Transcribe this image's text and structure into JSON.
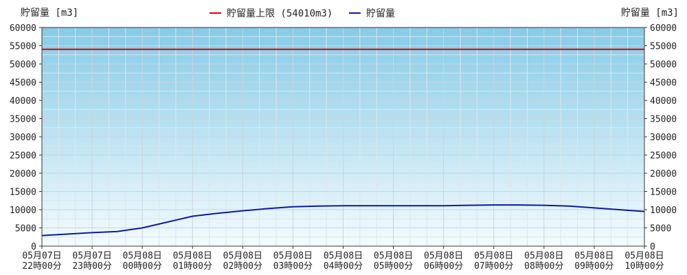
{
  "chart_data": {
    "type": "line",
    "y_unit_left": "貯留量 [m3]",
    "y_unit_right": "貯留量 [m3]",
    "ylim": [
      0,
      60000
    ],
    "yticks": [
      0,
      5000,
      10000,
      15000,
      20000,
      25000,
      30000,
      35000,
      40000,
      45000,
      50000,
      55000,
      60000
    ],
    "x_ticks": [
      {
        "date": "05月07日",
        "time": "22時00分"
      },
      {
        "date": "05月07日",
        "time": "23時00分"
      },
      {
        "date": "05月08日",
        "time": "00時00分"
      },
      {
        "date": "05月08日",
        "time": "01時00分"
      },
      {
        "date": "05月08日",
        "time": "02時00分"
      },
      {
        "date": "05月08日",
        "time": "03時00分"
      },
      {
        "date": "05月08日",
        "time": "04時00分"
      },
      {
        "date": "05月08日",
        "time": "05時00分"
      },
      {
        "date": "05月08日",
        "time": "06時00分"
      },
      {
        "date": "05月08日",
        "time": "07時00分"
      },
      {
        "date": "05月08日",
        "time": "08時00分"
      },
      {
        "date": "05月08日",
        "time": "09時00分"
      },
      {
        "date": "05月08日",
        "time": "10時00分"
      }
    ],
    "xlim": [
      "05月07日 22時00分",
      "05月08日 10時00分"
    ],
    "grid": true,
    "legend_position": "top-center",
    "series": [
      {
        "name": "貯留量上限 (54010m3)",
        "color": "#e00000",
        "x": [
          "05月07日 22時00分",
          "05月08日 10時00分"
        ],
        "y": [
          54010,
          54010
        ]
      },
      {
        "name": "貯留量",
        "color": "#0a1aa6",
        "x": [
          "05月07日 22時00分",
          "05月07日 22時30分",
          "05月07日 23時00分",
          "05月07日 23時30分",
          "05月08日 00時00分",
          "05月08日 00時30分",
          "05月08日 01時00分",
          "05月08日 01時30分",
          "05月08日 02時00分",
          "05月08日 02時30分",
          "05月08日 03時00分",
          "05月08日 03時30分",
          "05月08日 04時00分",
          "05月08日 05時00分",
          "05月08日 06時00分",
          "05月08日 06時30分",
          "05月08日 07時00分",
          "05月08日 07時30分",
          "05月08日 08時00分",
          "05月08日 08時30分",
          "05月08日 09時00分",
          "05月08日 09時30分",
          "05月08日 10時00分"
        ],
        "y": [
          2900,
          3300,
          3700,
          4000,
          5000,
          6600,
          8200,
          9000,
          9700,
          10300,
          10800,
          11000,
          11100,
          11100,
          11100,
          11200,
          11300,
          11300,
          11200,
          11000,
          10500,
          10000,
          9500
        ]
      }
    ]
  }
}
